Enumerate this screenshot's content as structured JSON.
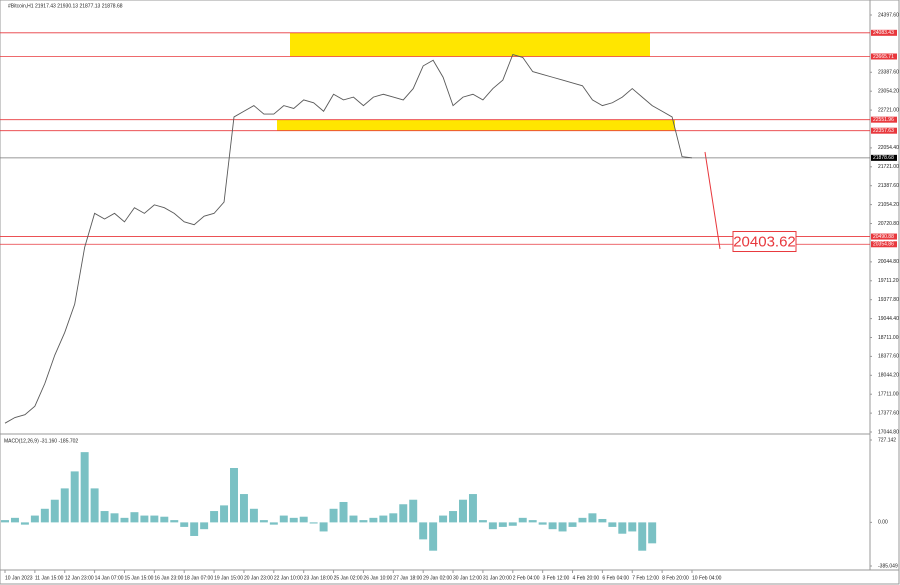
{
  "chart_data": [
    {
      "type": "line",
      "title": "#Bitcoin,H1  21917.43 21930.13 21877.13 21878.68",
      "categories": [
        "10 Jan 2023",
        null,
        null,
        "11 Jan 15:00",
        null,
        null,
        "12 Jan 23:00",
        null,
        null,
        "14 Jan 07:00",
        null,
        null,
        "15 Jan 15:00",
        null,
        null,
        "16 Jan 23:00",
        null,
        null,
        "18 Jan 07:00",
        null,
        null,
        "19 Jan 15:00",
        null,
        null,
        "20 Jan 23:00",
        null,
        null,
        "22 Jan 10:00",
        null,
        null,
        "23 Jan 18:00",
        null,
        null,
        "25 Jan 02:00",
        null,
        null,
        "26 Jan 10:00",
        null,
        null,
        "27 Jan 18:00",
        null,
        null,
        "29 Jan 02:00",
        null,
        null,
        "30 Jan 12:00",
        null,
        null,
        "31 Jan 20:00",
        null,
        null,
        "2 Feb 04:00",
        null,
        null,
        "3 Feb 12:00",
        null,
        null,
        "4 Feb 20:00",
        null,
        null,
        "6 Feb 04:00",
        null,
        null,
        "7 Feb 12:00",
        null,
        null,
        "8 Feb 20:00",
        null,
        null,
        "10 Feb 04:00"
      ],
      "series": [
        {
          "color": "#5a5a5a",
          "values": [
            17200,
            17300,
            17350,
            17500,
            17900,
            18400,
            18800,
            19300,
            20300,
            20900,
            20800,
            20900,
            20750,
            21000,
            20900,
            21050,
            21000,
            20900,
            20750,
            20700,
            20850,
            20900,
            21100,
            22600,
            22700,
            22800,
            22650,
            22650,
            22800,
            22750,
            22900,
            22850,
            22700,
            23000,
            22900,
            22950,
            22800,
            22950,
            23000,
            22950,
            22900,
            23100,
            23500,
            23600,
            23300,
            22800,
            22950,
            23000,
            22900,
            23100,
            23250,
            23700,
            23650,
            23400,
            23350,
            23300,
            23250,
            23200,
            23150,
            22900,
            22800,
            22850,
            22950,
            23100,
            22950,
            22800,
            22700,
            22600,
            21900,
            21878.68
          ]
        }
      ],
      "ylim": [
        17044.8,
        24397.6
      ],
      "yticks": [
        {
          "value": 24397.6,
          "label": "24397.60"
        },
        {
          "value": 23387.6,
          "label": "23387.60"
        },
        {
          "value": 23054.2,
          "label": "23054.20"
        },
        {
          "value": 22721.0,
          "label": "22721.00"
        },
        {
          "value": 22054.4,
          "label": "22054.40"
        },
        {
          "value": 21721.0,
          "label": "21721.00"
        },
        {
          "value": 21387.6,
          "label": "21387.60"
        },
        {
          "value": 21054.2,
          "label": "21054.20"
        },
        {
          "value": 20720.8,
          "label": "20720.80"
        },
        {
          "value": 20044.8,
          "label": "20044.80"
        },
        {
          "value": 19711.2,
          "label": "19711.20"
        },
        {
          "value": 19377.8,
          "label": "19377.80"
        },
        {
          "value": 19044.4,
          "label": "19044.40"
        },
        {
          "value": 18711.0,
          "label": "18711.00"
        },
        {
          "value": 18377.6,
          "label": "18377.60"
        },
        {
          "value": 18044.2,
          "label": "18044.20"
        },
        {
          "value": 17711.0,
          "label": "17711.00"
        },
        {
          "value": 17377.6,
          "label": "17377.60"
        },
        {
          "value": 17044.8,
          "label": "17044.80"
        }
      ],
      "levels": [
        24083.43,
        23665.71,
        22551.96,
        22357.63,
        20490.88,
        20354.86
      ],
      "level_color": "#e8383d",
      "current_price": 21878.68,
      "zones": [
        [
          23665.71,
          24083.43
        ],
        [
          22357.63,
          22551.96
        ]
      ],
      "zone_color": "#ffe600",
      "target": 20403.62
    },
    {
      "type": "bar",
      "title": "MACD(12,26,9) -31.160 -185.702",
      "color": "#7ac1c4",
      "values": [
        20,
        40,
        -20,
        60,
        120,
        200,
        300,
        450,
        620,
        300,
        100,
        80,
        40,
        90,
        60,
        60,
        50,
        20,
        -40,
        -120,
        -60,
        100,
        150,
        480,
        250,
        120,
        20,
        -20,
        60,
        40,
        50,
        -10,
        -80,
        120,
        180,
        60,
        20,
        40,
        60,
        80,
        160,
        200,
        -150,
        -250,
        60,
        100,
        200,
        250,
        20,
        -60,
        -40,
        -30,
        40,
        20,
        -20,
        -60,
        -80,
        -40,
        40,
        80,
        30,
        -40,
        -100,
        -80,
        -250,
        -185
      ],
      "ylim": [
        -385.049,
        727.142
      ],
      "yticks": [
        727.142,
        {
          "value": 0,
          "label": "0.00"
        },
        -385.049
      ]
    }
  ]
}
